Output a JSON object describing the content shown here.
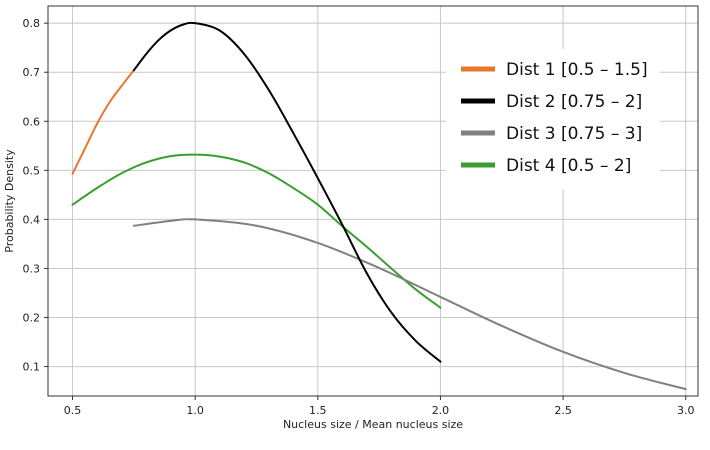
{
  "chart_data": {
    "type": "line",
    "title": "",
    "xlabel": "Nucleus size / Mean nucleus size",
    "ylabel": "Probability Density",
    "xlim": [
      0.4,
      3.05
    ],
    "ylim": [
      0.04,
      0.835
    ],
    "xticks": [
      0.5,
      1.0,
      1.5,
      2.0,
      2.5,
      3.0
    ],
    "xtick_labels": [
      "0.5",
      "1.0",
      "1.5",
      "2.0",
      "2.5",
      "3.0"
    ],
    "yticks": [
      0.1,
      0.2,
      0.3,
      0.4,
      0.5,
      0.6,
      0.7,
      0.8
    ],
    "ytick_labels": [
      "0.1",
      "0.2",
      "0.3",
      "0.4",
      "0.5",
      "0.6",
      "0.7",
      "0.8"
    ],
    "grid": true,
    "legend_position": "top-right",
    "series": [
      {
        "name": "Dist 1 [0.5 – 1.5]",
        "color": "#e8772e",
        "x": [
          0.5,
          0.55,
          0.6,
          0.65,
          0.7,
          0.75
        ],
        "y": [
          0.493,
          0.544,
          0.595,
          0.638,
          0.672,
          0.704
        ]
      },
      {
        "name": "Dist 2 [0.75 – 2]",
        "color": "#000000",
        "x": [
          0.75,
          0.8,
          0.85,
          0.9,
          0.95,
          1.0,
          1.1,
          1.2,
          1.3,
          1.4,
          1.5,
          1.6,
          1.7,
          1.8,
          1.9,
          2.0
        ],
        "y": [
          0.704,
          0.737,
          0.765,
          0.785,
          0.797,
          0.8,
          0.785,
          0.737,
          0.664,
          0.576,
          0.484,
          0.389,
          0.29,
          0.21,
          0.152,
          0.11
        ]
      },
      {
        "name": "Dist 3 [0.75 – 3]",
        "color": "#808080",
        "x": [
          0.75,
          0.9,
          1.0,
          1.25,
          1.5,
          1.75,
          2.0,
          2.25,
          2.5,
          2.75,
          3.0
        ],
        "y": [
          0.387,
          0.397,
          0.4,
          0.387,
          0.352,
          0.301,
          0.242,
          0.183,
          0.13,
          0.087,
          0.054
        ]
      },
      {
        "name": "Dist 4 [0.5 – 2]",
        "color": "#3a9e30",
        "x": [
          0.5,
          0.6,
          0.7,
          0.8,
          0.9,
          1.0,
          1.1,
          1.2,
          1.3,
          1.4,
          1.5,
          1.6,
          1.7,
          1.8,
          1.9,
          2.0
        ],
        "y": [
          0.43,
          0.464,
          0.494,
          0.516,
          0.529,
          0.532,
          0.528,
          0.516,
          0.494,
          0.464,
          0.43,
          0.386,
          0.344,
          0.3,
          0.257,
          0.22
        ]
      }
    ]
  }
}
